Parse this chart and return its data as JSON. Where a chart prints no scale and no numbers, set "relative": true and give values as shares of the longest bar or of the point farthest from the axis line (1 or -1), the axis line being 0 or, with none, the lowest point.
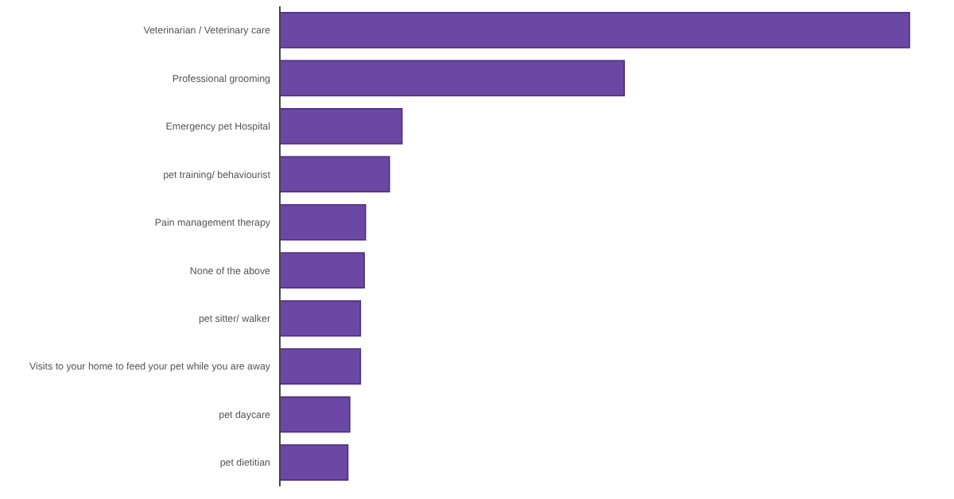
{
  "chart_data": {
    "type": "bar",
    "orientation": "horizontal",
    "relative": true,
    "categories": [
      "Veterinarian / Veterinary care",
      "Professional grooming",
      "Emergency pet Hospital",
      "pet training/ behaviourist",
      "Pain management therapy",
      "None of the above",
      "pet sitter/ walker",
      "Visits to your home to feed your pet while you are away",
      "pet daycare",
      "pet dietitian"
    ],
    "values": [
      1,
      0.547,
      0.194,
      0.174,
      0.136,
      0.134,
      0.128,
      0.128,
      0.111,
      0.108
    ],
    "color": "#6a48a3"
  }
}
